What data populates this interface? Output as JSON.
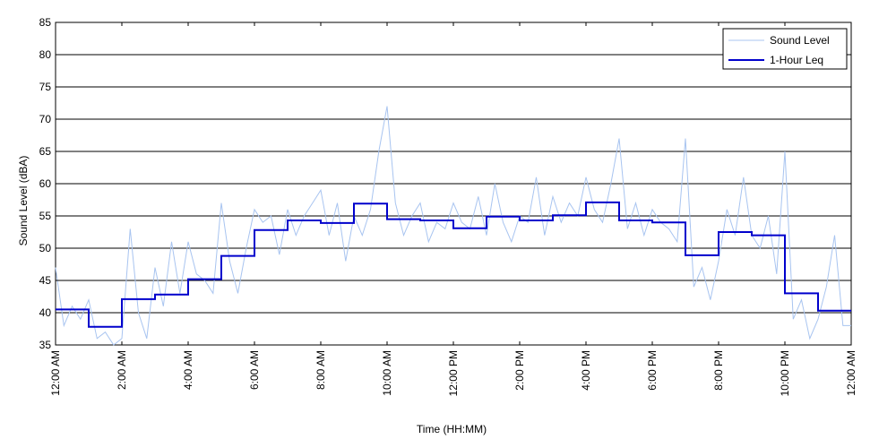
{
  "chart_data": {
    "type": "line",
    "xlabel": "Time (HH:MM)",
    "ylabel": "Sound Level (dBA)",
    "ylim": [
      35,
      85
    ],
    "yticks": [
      35,
      40,
      45,
      50,
      55,
      60,
      65,
      70,
      75,
      80,
      85
    ],
    "xlim_hours": [
      0,
      24
    ],
    "xtick_hours": [
      0,
      2,
      4,
      6,
      8,
      10,
      12,
      14,
      16,
      18,
      20,
      22,
      24
    ],
    "xtick_labels": [
      "12:00 AM",
      "2:00 AM",
      "4:00 AM",
      "6:00 AM",
      "8:00 AM",
      "10:00 AM",
      "12:00 PM",
      "2:00 PM",
      "4:00 PM",
      "6:00 PM",
      "8:00 PM",
      "10:00 PM",
      "12:00 AM"
    ],
    "grid": "horizontal",
    "legend_position": "top-right",
    "series": [
      {
        "name": "Sound Level",
        "color": "#a8c4f0",
        "style": "thin-line",
        "x_hours": [
          0,
          0.25,
          0.5,
          0.75,
          1,
          1.25,
          1.5,
          1.75,
          2,
          2.25,
          2.5,
          2.75,
          3,
          3.25,
          3.5,
          3.75,
          4,
          4.25,
          4.5,
          4.75,
          5,
          5.25,
          5.5,
          5.75,
          6,
          6.25,
          6.5,
          6.75,
          7,
          7.25,
          7.5,
          7.75,
          8,
          8.25,
          8.5,
          8.75,
          9,
          9.25,
          9.5,
          9.75,
          10,
          10.25,
          10.5,
          10.75,
          11,
          11.25,
          11.5,
          11.75,
          12,
          12.25,
          12.5,
          12.75,
          13,
          13.25,
          13.5,
          13.75,
          14,
          14.25,
          14.5,
          14.75,
          15,
          15.25,
          15.5,
          15.75,
          16,
          16.25,
          16.5,
          16.75,
          17,
          17.25,
          17.5,
          17.75,
          18,
          18.25,
          18.5,
          18.75,
          19,
          19.25,
          19.5,
          19.75,
          20,
          20.25,
          20.5,
          20.75,
          21,
          21.25,
          21.5,
          21.75,
          22,
          22.25,
          22.5,
          22.75,
          23,
          23.25,
          23.5,
          23.75,
          24
        ],
        "values": [
          47,
          38,
          41,
          39,
          42,
          36,
          37,
          35,
          36,
          53,
          40,
          36,
          47,
          41,
          51,
          43,
          51,
          46,
          45,
          43,
          57,
          48,
          43,
          50,
          56,
          54,
          55,
          49,
          56,
          52,
          55,
          57,
          59,
          52,
          57,
          48,
          55,
          52,
          56,
          65,
          72,
          57,
          52,
          55,
          57,
          51,
          54,
          53,
          57,
          54,
          53,
          58,
          52,
          60,
          54,
          51,
          55,
          54,
          61,
          52,
          58,
          54,
          57,
          55,
          61,
          56,
          54,
          60,
          67,
          53,
          57,
          52,
          56,
          54,
          53,
          51,
          67,
          44,
          47,
          42,
          48,
          56,
          52,
          61,
          52,
          50,
          55,
          46,
          65,
          39,
          42,
          36,
          39,
          44,
          52,
          38,
          38
        ]
      },
      {
        "name": "1-Hour Leq",
        "color": "#0000cc",
        "style": "step",
        "hourly_values": [
          40.5,
          37.8,
          42.1,
          42.8,
          45.2,
          48.8,
          52.8,
          54.3,
          53.9,
          56.9,
          54.5,
          54.3,
          53.1,
          54.9,
          54.3,
          55.1,
          57.1,
          54.3,
          54.0,
          48.9,
          52.5,
          52.0,
          43.0,
          40.3
        ]
      }
    ]
  }
}
